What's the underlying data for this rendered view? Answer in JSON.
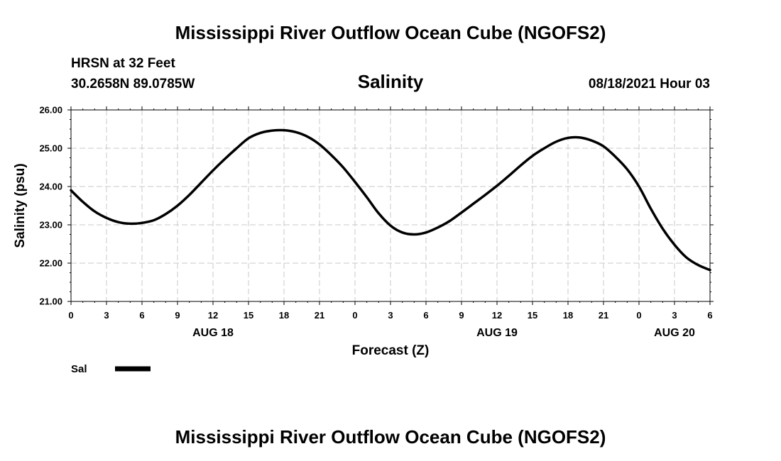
{
  "header": {
    "title_top": "Mississippi River Outflow Ocean Cube (NGOFS2)",
    "title_bottom": "Mississippi River Outflow Ocean Cube (NGOFS2)",
    "station": "HRSN at 32 Feet",
    "location": "30.2658N  89.0785W",
    "variable": "Salinity",
    "datetime": "08/18/2021 Hour 03"
  },
  "chart_data": {
    "type": "line",
    "ylabel": "Salinity (psu)",
    "xlabel": "Forecast (Z)",
    "ylim": [
      21.0,
      26.0
    ],
    "xlim": [
      0,
      54
    ],
    "y_ticks": [
      "21.00",
      "22.00",
      "23.00",
      "24.00",
      "25.00",
      "26.00"
    ],
    "x_ticks": [
      "0",
      "3",
      "6",
      "9",
      "12",
      "15",
      "18",
      "21",
      "0",
      "3",
      "6",
      "9",
      "12",
      "15",
      "18",
      "21",
      "0",
      "3",
      "6"
    ],
    "day_labels": [
      {
        "label": "AUG 18",
        "hour": 12
      },
      {
        "label": "AUG 19",
        "hour": 36
      },
      {
        "label": "AUG 20",
        "hour": 51
      }
    ],
    "grid": true,
    "series": [
      {
        "name": "Sal",
        "x": [
          0,
          1,
          2,
          3,
          4,
          5,
          6,
          7,
          8,
          9,
          10,
          11,
          12,
          13,
          14,
          15,
          16,
          17,
          18,
          19,
          20,
          21,
          22,
          23,
          24,
          25,
          26,
          27,
          28,
          29,
          30,
          31,
          32,
          33,
          34,
          35,
          36,
          37,
          38,
          39,
          40,
          41,
          42,
          43,
          44,
          45,
          46,
          47,
          48,
          49,
          50,
          51,
          52,
          53,
          54
        ],
        "values": [
          23.9,
          23.6,
          23.35,
          23.18,
          23.07,
          23.03,
          23.05,
          23.12,
          23.28,
          23.5,
          23.78,
          24.1,
          24.42,
          24.72,
          25.0,
          25.26,
          25.4,
          25.46,
          25.47,
          25.42,
          25.3,
          25.1,
          24.82,
          24.5,
          24.12,
          23.72,
          23.3,
          22.98,
          22.8,
          22.75,
          22.8,
          22.93,
          23.1,
          23.32,
          23.55,
          23.78,
          24.02,
          24.28,
          24.55,
          24.8,
          25.0,
          25.17,
          25.27,
          25.28,
          25.2,
          25.05,
          24.78,
          24.45,
          24.0,
          23.42,
          22.9,
          22.48,
          22.15,
          21.95,
          21.82
        ]
      }
    ],
    "legend": {
      "label": "Sal",
      "position": "bottom-left"
    }
  }
}
